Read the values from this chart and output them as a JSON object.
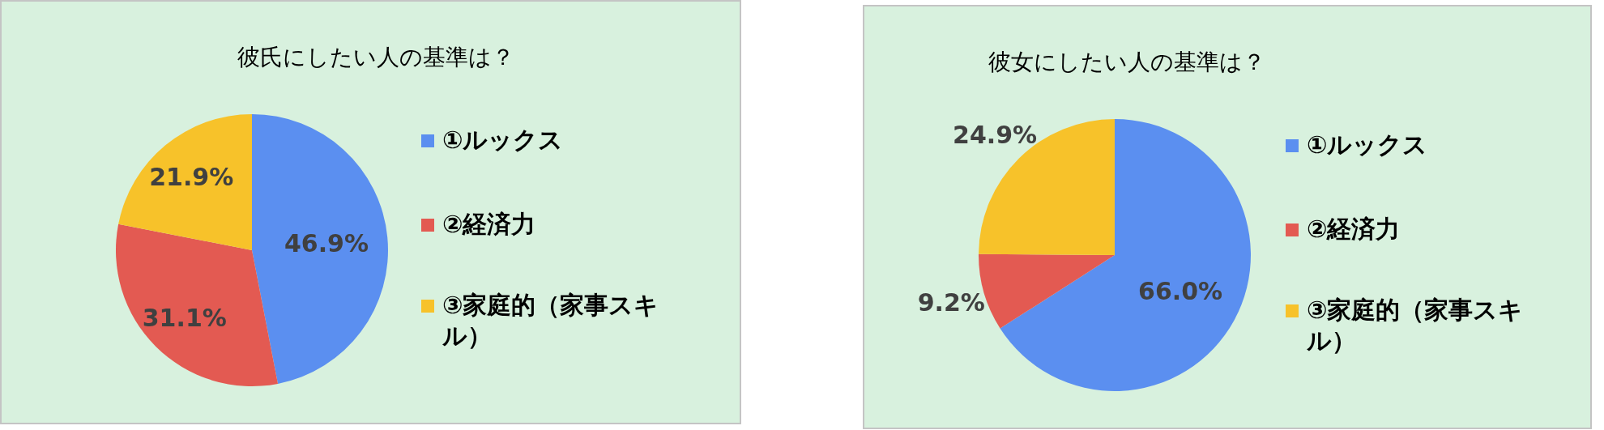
{
  "chart_data": [
    {
      "type": "pie",
      "title": "彼氏にしたい人の基準は？",
      "categories": [
        "①ルックス",
        "②経済力",
        "③家庭的（家事スキル）"
      ],
      "values": [
        46.9,
        31.1,
        21.9
      ],
      "value_labels": [
        "46.9%",
        "31.1%",
        "21.9%"
      ],
      "colors": [
        "#5b8ff0",
        "#e35a52",
        "#f7c22a"
      ],
      "legend": "right"
    },
    {
      "type": "pie",
      "title": "彼女にしたい人の基準は？",
      "categories": [
        "①ルックス",
        "②経済力",
        "③家庭的（家事スキル）"
      ],
      "values": [
        66.0,
        9.2,
        24.9
      ],
      "value_labels": [
        "66.0%",
        "9.2%",
        "24.9%"
      ],
      "colors": [
        "#5b8ff0",
        "#e35a52",
        "#f7c22a"
      ],
      "legend": "right"
    }
  ]
}
